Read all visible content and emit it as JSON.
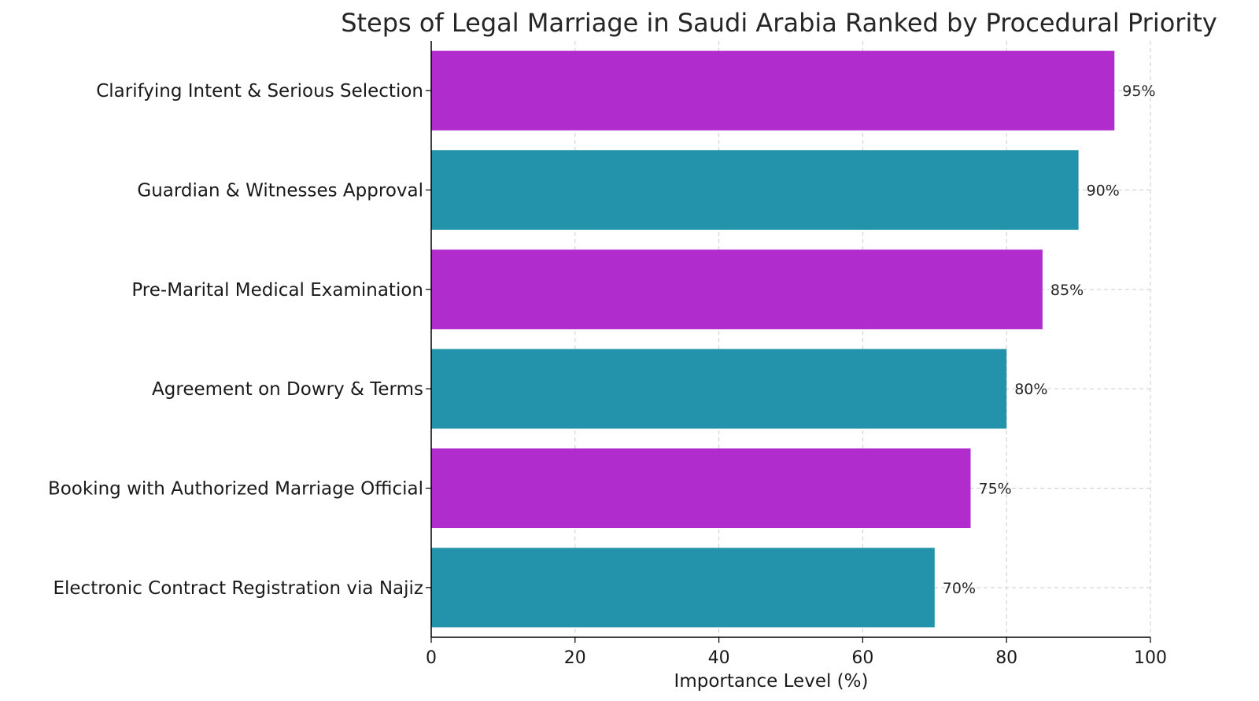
{
  "chart_data": {
    "type": "bar",
    "orientation": "horizontal",
    "title": "Steps of Legal Marriage in Saudi Arabia Ranked by Procedural Priority",
    "xlabel": "Importance Level (%)",
    "ylabel": "",
    "xlim": [
      0,
      100
    ],
    "xticks": [
      0,
      20,
      40,
      60,
      80,
      100
    ],
    "grid": true,
    "categories": [
      "Clarifying Intent & Serious Selection",
      "Guardian & Witnesses Approval",
      "Pre-Marital Medical Examination",
      "Agreement on Dowry & Terms",
      "Booking with Authorized Marriage Official",
      "Electronic Contract Registration via Najiz"
    ],
    "values": [
      95,
      90,
      85,
      80,
      75,
      70
    ],
    "data_labels": [
      "95%",
      "90%",
      "85%",
      "80%",
      "75%",
      "70%"
    ],
    "colors": [
      "#b12ccc",
      "#2392ab",
      "#b12ccc",
      "#2392ab",
      "#b12ccc",
      "#2392ab"
    ]
  }
}
